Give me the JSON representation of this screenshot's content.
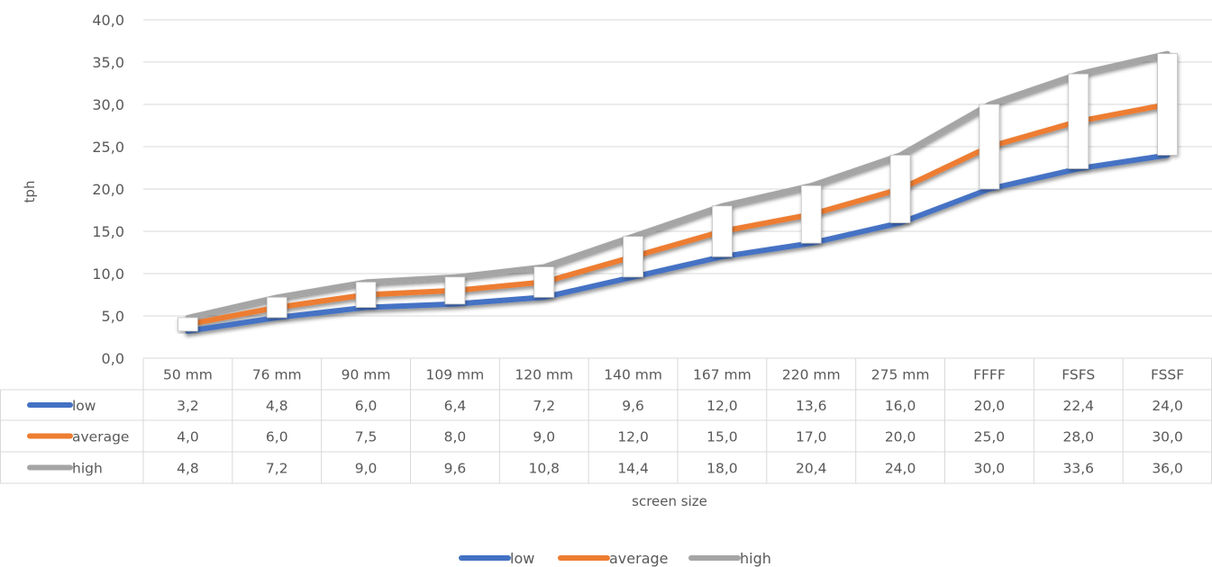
{
  "chart_data": {
    "type": "line",
    "title": "",
    "xlabel": "screen size",
    "ylabel": "tph",
    "ylim": [
      0,
      40
    ],
    "y_ticks": [
      "0,0",
      "5,0",
      "10,0",
      "15,0",
      "20,0",
      "25,0",
      "30,0",
      "35,0",
      "40,0"
    ],
    "categories": [
      "50 mm",
      "76 mm",
      "90 mm",
      "109 mm",
      "120 mm",
      "140 mm",
      "167 mm",
      "220 mm",
      "275 mm",
      "FFFF",
      "FSFS",
      "FSSF"
    ],
    "grid": true,
    "legend_position": "bottom",
    "high_low_bars": true,
    "data_table": true,
    "series": [
      {
        "name": "low",
        "color": "#4472C4",
        "values": [
          3.2,
          4.8,
          6.0,
          6.4,
          7.2,
          9.6,
          12.0,
          13.6,
          16.0,
          20.0,
          22.4,
          24.0
        ],
        "labels": [
          "3,2",
          "4,8",
          "6,0",
          "6,4",
          "7,2",
          "9,6",
          "12,0",
          "13,6",
          "16,0",
          "20,0",
          "22,4",
          "24,0"
        ]
      },
      {
        "name": "average",
        "color": "#ED7D31",
        "values": [
          4.0,
          6.0,
          7.5,
          8.0,
          9.0,
          12.0,
          15.0,
          17.0,
          20.0,
          25.0,
          28.0,
          30.0
        ],
        "labels": [
          "4,0",
          "6,0",
          "7,5",
          "8,0",
          "9,0",
          "12,0",
          "15,0",
          "17,0",
          "20,0",
          "25,0",
          "28,0",
          "30,0"
        ]
      },
      {
        "name": "high",
        "color": "#A5A5A5",
        "values": [
          4.8,
          7.2,
          9.0,
          9.6,
          10.8,
          14.4,
          18.0,
          20.4,
          24.0,
          30.0,
          33.6,
          36.0
        ],
        "labels": [
          "4,8",
          "7,2",
          "9,0",
          "9,6",
          "10,8",
          "14,4",
          "18,0",
          "20,4",
          "24,0",
          "30,0",
          "33,6",
          "36,0"
        ]
      }
    ]
  }
}
